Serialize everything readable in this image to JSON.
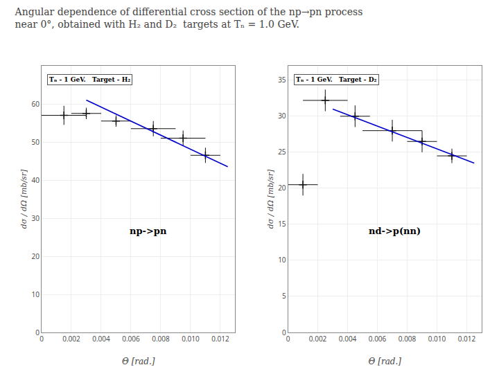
{
  "title": "Angular dependence of differential cross section of the np→pn process\nnear 0°, obtained with H₂ and D₂  targets at Tₙ = 1.0 GeV.",
  "chart_data": [
    {
      "type": "scatter",
      "annotations": [
        "Tₙ - 1 GeV.   Target - H₂",
        "np->pn"
      ],
      "x_label": "Θ [rad.]",
      "y_label": "dσ / dΩ [mb/sr]",
      "xlim": [
        0,
        0.013
      ],
      "xticks": [
        0,
        0.002,
        0.004,
        0.006,
        0.008,
        {
          "value": 0.01,
          "label": "0.010"
        },
        0.012
      ],
      "ylim": [
        0,
        70
      ],
      "yticks": [
        0,
        10,
        20,
        30,
        40,
        50,
        60
      ],
      "grid": true,
      "series": [
        {
          "type": "scatter",
          "marker": "+",
          "color": "#111111",
          "x": [
            0.0015,
            0.003,
            0.005,
            0.0075,
            0.0095,
            0.011
          ],
          "values": [
            57.0,
            57.5,
            55.5,
            53.5,
            51.0,
            46.5
          ],
          "xerr": [
            0.0015,
            0.001,
            0.001,
            0.0015,
            0.0015,
            0.001
          ],
          "yerr": [
            2.5,
            1.5,
            1.5,
            2.0,
            2.0,
            2.0
          ]
        },
        {
          "type": "line",
          "line_style": "solid",
          "color": "#0000cc",
          "x": [
            0.003,
            0.0125
          ],
          "values": [
            61.0,
            43.5
          ]
        }
      ]
    },
    {
      "type": "scatter",
      "annotations": [
        "Tₙ - 1 GeV.   Target - D₂",
        "nd->p(nn)"
      ],
      "x_label": "Θ [rad.]",
      "y_label": "dσ / dΩ [mb/sr]",
      "xlim": [
        0,
        0.013
      ],
      "xticks": [
        0,
        0.002,
        0.004,
        0.006,
        0.008,
        {
          "value": 0.01,
          "label": "0.010"
        },
        0.012
      ],
      "ylim": [
        0,
        37
      ],
      "yticks": [
        0,
        5,
        10,
        15,
        20,
        25,
        30,
        35
      ],
      "grid": true,
      "series": [
        {
          "type": "scatter",
          "marker": "+",
          "color": "#111111",
          "x": [
            0.001,
            0.0025,
            0.0045,
            0.007,
            0.009,
            0.011
          ],
          "values": [
            20.5,
            32.2,
            30.0,
            28.0,
            26.5,
            24.5
          ],
          "xerr": [
            0.001,
            0.0015,
            0.001,
            0.002,
            0.001,
            0.001
          ],
          "yerr": [
            1.5,
            1.5,
            1.5,
            1.5,
            1.5,
            1.0
          ]
        },
        {
          "type": "line",
          "line_style": "solid",
          "color": "#0000cc",
          "x": [
            0.003,
            0.0125
          ],
          "values": [
            31.0,
            23.5
          ]
        }
      ]
    }
  ]
}
